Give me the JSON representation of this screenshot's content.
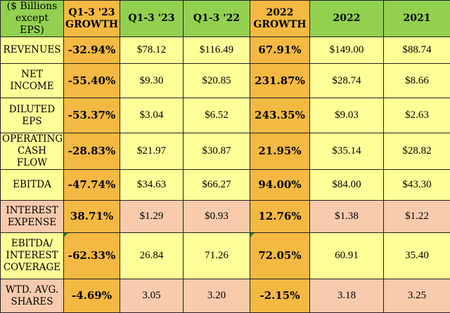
{
  "colors": {
    "header": "#92d050",
    "growth": "#f4b942",
    "row": "#ffff99",
    "peach": "#f8cbad"
  },
  "header": {
    "label": "($ Billions except EPS)",
    "col1": "Q1-3 '23 GROWTH",
    "col2": "Q1-3 '23",
    "col3": "Q1-3 '22",
    "col4": "2022 GROWTH",
    "col5": "2022",
    "col6": "2021"
  },
  "rows": [
    {
      "label": "REVENUES",
      "growth_q": "-32.94%",
      "q23": "$78.12",
      "q22": "$116.49",
      "growth_y": "67.91%",
      "y22": "$149.00",
      "y21": "$88.74"
    },
    {
      "label": "NET INCOME",
      "growth_q": "-55.40%",
      "q23": "$9.30",
      "q22": "$20.85",
      "growth_y": "231.87%",
      "y22": "$28.74",
      "y21": "$8.66"
    },
    {
      "label": "DILUTED EPS",
      "growth_q": "-53.37%",
      "q23": "$3.04",
      "q22": "$6.52",
      "growth_y": "243.35%",
      "y22": "$9.03",
      "y21": "$2.63"
    },
    {
      "label": "OPERATING CASH FLOW",
      "growth_q": "-28.83%",
      "q23": "$21.97",
      "q22": "$30.87",
      "growth_y": "21.95%",
      "y22": "$35.14",
      "y21": "$28.82"
    },
    {
      "label": "EBITDA",
      "growth_q": "-47.74%",
      "q23": "$34.63",
      "q22": "$66.27",
      "growth_y": "94.00%",
      "y22": "$84.00",
      "y21": "$43.30"
    },
    {
      "label": "INTEREST EXPENSE",
      "growth_q": "38.71%",
      "q23": "$1.29",
      "q22": "$0.93",
      "growth_y": "12.76%",
      "y22": "$1.38",
      "y21": "$1.22"
    },
    {
      "label": "EBITDA/ INTEREST COVERAGE",
      "growth_q": "-62.33%",
      "q23": "26.84",
      "q22": "71.26",
      "growth_y": "72.05%",
      "y22": "60.91",
      "y21": "35.40"
    },
    {
      "label": "WTD. AVG. SHARES",
      "growth_q": "-4.69%",
      "q23": "3.05",
      "q22": "3.20",
      "growth_y": "-2.15%",
      "y22": "3.18",
      "y21": "3.25"
    }
  ]
}
